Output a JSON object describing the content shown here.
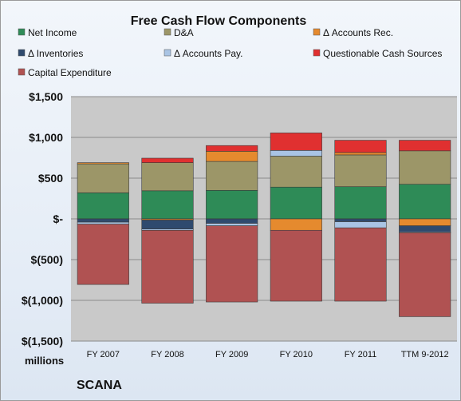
{
  "chart_data": {
    "type": "bar",
    "stacked": true,
    "title": "Free Cash Flow Components",
    "units_label": "millions",
    "company": "SCANA",
    "categories": [
      "FY 2007",
      "FY 2008",
      "FY 2009",
      "FY 2010",
      "FY 2011",
      "TTM 9-2012"
    ],
    "ylim": [
      -1500,
      1500
    ],
    "yticks": [
      1500,
      1000,
      500,
      0,
      -500,
      -1000,
      -1500
    ],
    "ytick_labels": [
      "$1,500",
      "$1,000",
      "$500",
      "$-",
      "$(500)",
      "$(1,000)",
      "$(1,500)"
    ],
    "grid": true,
    "legend_position": "top",
    "series": [
      {
        "name": "Net Income",
        "color": "#2e8b57",
        "values": [
          320,
          345,
          350,
          390,
          395,
          425
        ]
      },
      {
        "name": "D&A",
        "color": "#9c9668",
        "values": [
          355,
          345,
          355,
          380,
          390,
          410
        ]
      },
      {
        "name": "Δ Accounts Rec.",
        "color": "#e58a2e",
        "values": [
          15,
          -15,
          125,
          -140,
          30,
          -85
        ]
      },
      {
        "name": "Δ Inventories",
        "color": "#2f4a6e",
        "values": [
          -40,
          -110,
          -55,
          0,
          -35,
          -75
        ]
      },
      {
        "name": "Δ Accounts Pay.",
        "color": "#a9c4e4",
        "values": [
          -25,
          -15,
          -30,
          70,
          -75,
          -10
        ]
      },
      {
        "name": "Questionable Cash Sources",
        "color": "#e03030",
        "values": [
          0,
          55,
          70,
          215,
          150,
          130
        ]
      },
      {
        "name": "Capital Expenditure",
        "color": "#b05252",
        "values": [
          -740,
          -895,
          -935,
          -870,
          -900,
          -1030
        ]
      }
    ]
  }
}
